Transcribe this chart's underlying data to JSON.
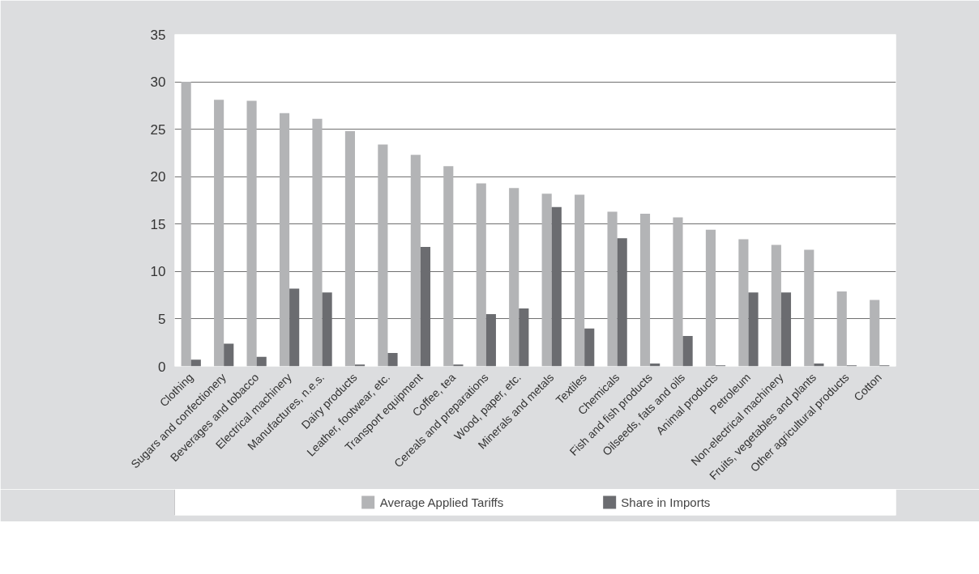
{
  "chart_data": {
    "type": "bar",
    "categories": [
      "Clothing",
      "Sugars and confectionery",
      "Beverages and tobacco",
      "Electrical machinery",
      "Manufactures, n.e.s.",
      "Dairy products",
      "Leather, footwear, etc.",
      "Transport equipment",
      "Coffee, tea",
      "Cereals and preparations",
      "Wood, paper, etc.",
      "Minerals and metals",
      "Textiles",
      "Chemicals",
      "Fish and fish products",
      "Oilseeds, fats and oils",
      "Animal products",
      "Petroleum",
      "Non-electrical machinery",
      "Fruits, vegetables and plants",
      "Other agricultural products",
      "Cotton"
    ],
    "series": [
      {
        "name": "Average Applied Tariffs",
        "color": "#b3b4b6",
        "values": [
          30,
          28.1,
          28,
          26.7,
          26.1,
          24.8,
          23.4,
          22.3,
          21.1,
          19.3,
          18.8,
          18.2,
          18.1,
          16.3,
          16.1,
          15.7,
          14.4,
          13.4,
          12.8,
          12.3,
          7.9,
          7.0
        ]
      },
      {
        "name": "Share in Imports",
        "color": "#6b6c70",
        "values": [
          0.7,
          2.4,
          1.0,
          8.2,
          7.8,
          0.2,
          1.4,
          12.6,
          0.2,
          5.5,
          6.1,
          16.8,
          4.0,
          13.5,
          0.3,
          3.2,
          0.1,
          7.8,
          7.8,
          0.3,
          0.1,
          0.1
        ]
      }
    ],
    "ylim": [
      0,
      35
    ],
    "yticks": [
      0,
      5,
      10,
      15,
      20,
      25,
      30,
      35
    ],
    "grid": "y",
    "legend": "bottom"
  }
}
